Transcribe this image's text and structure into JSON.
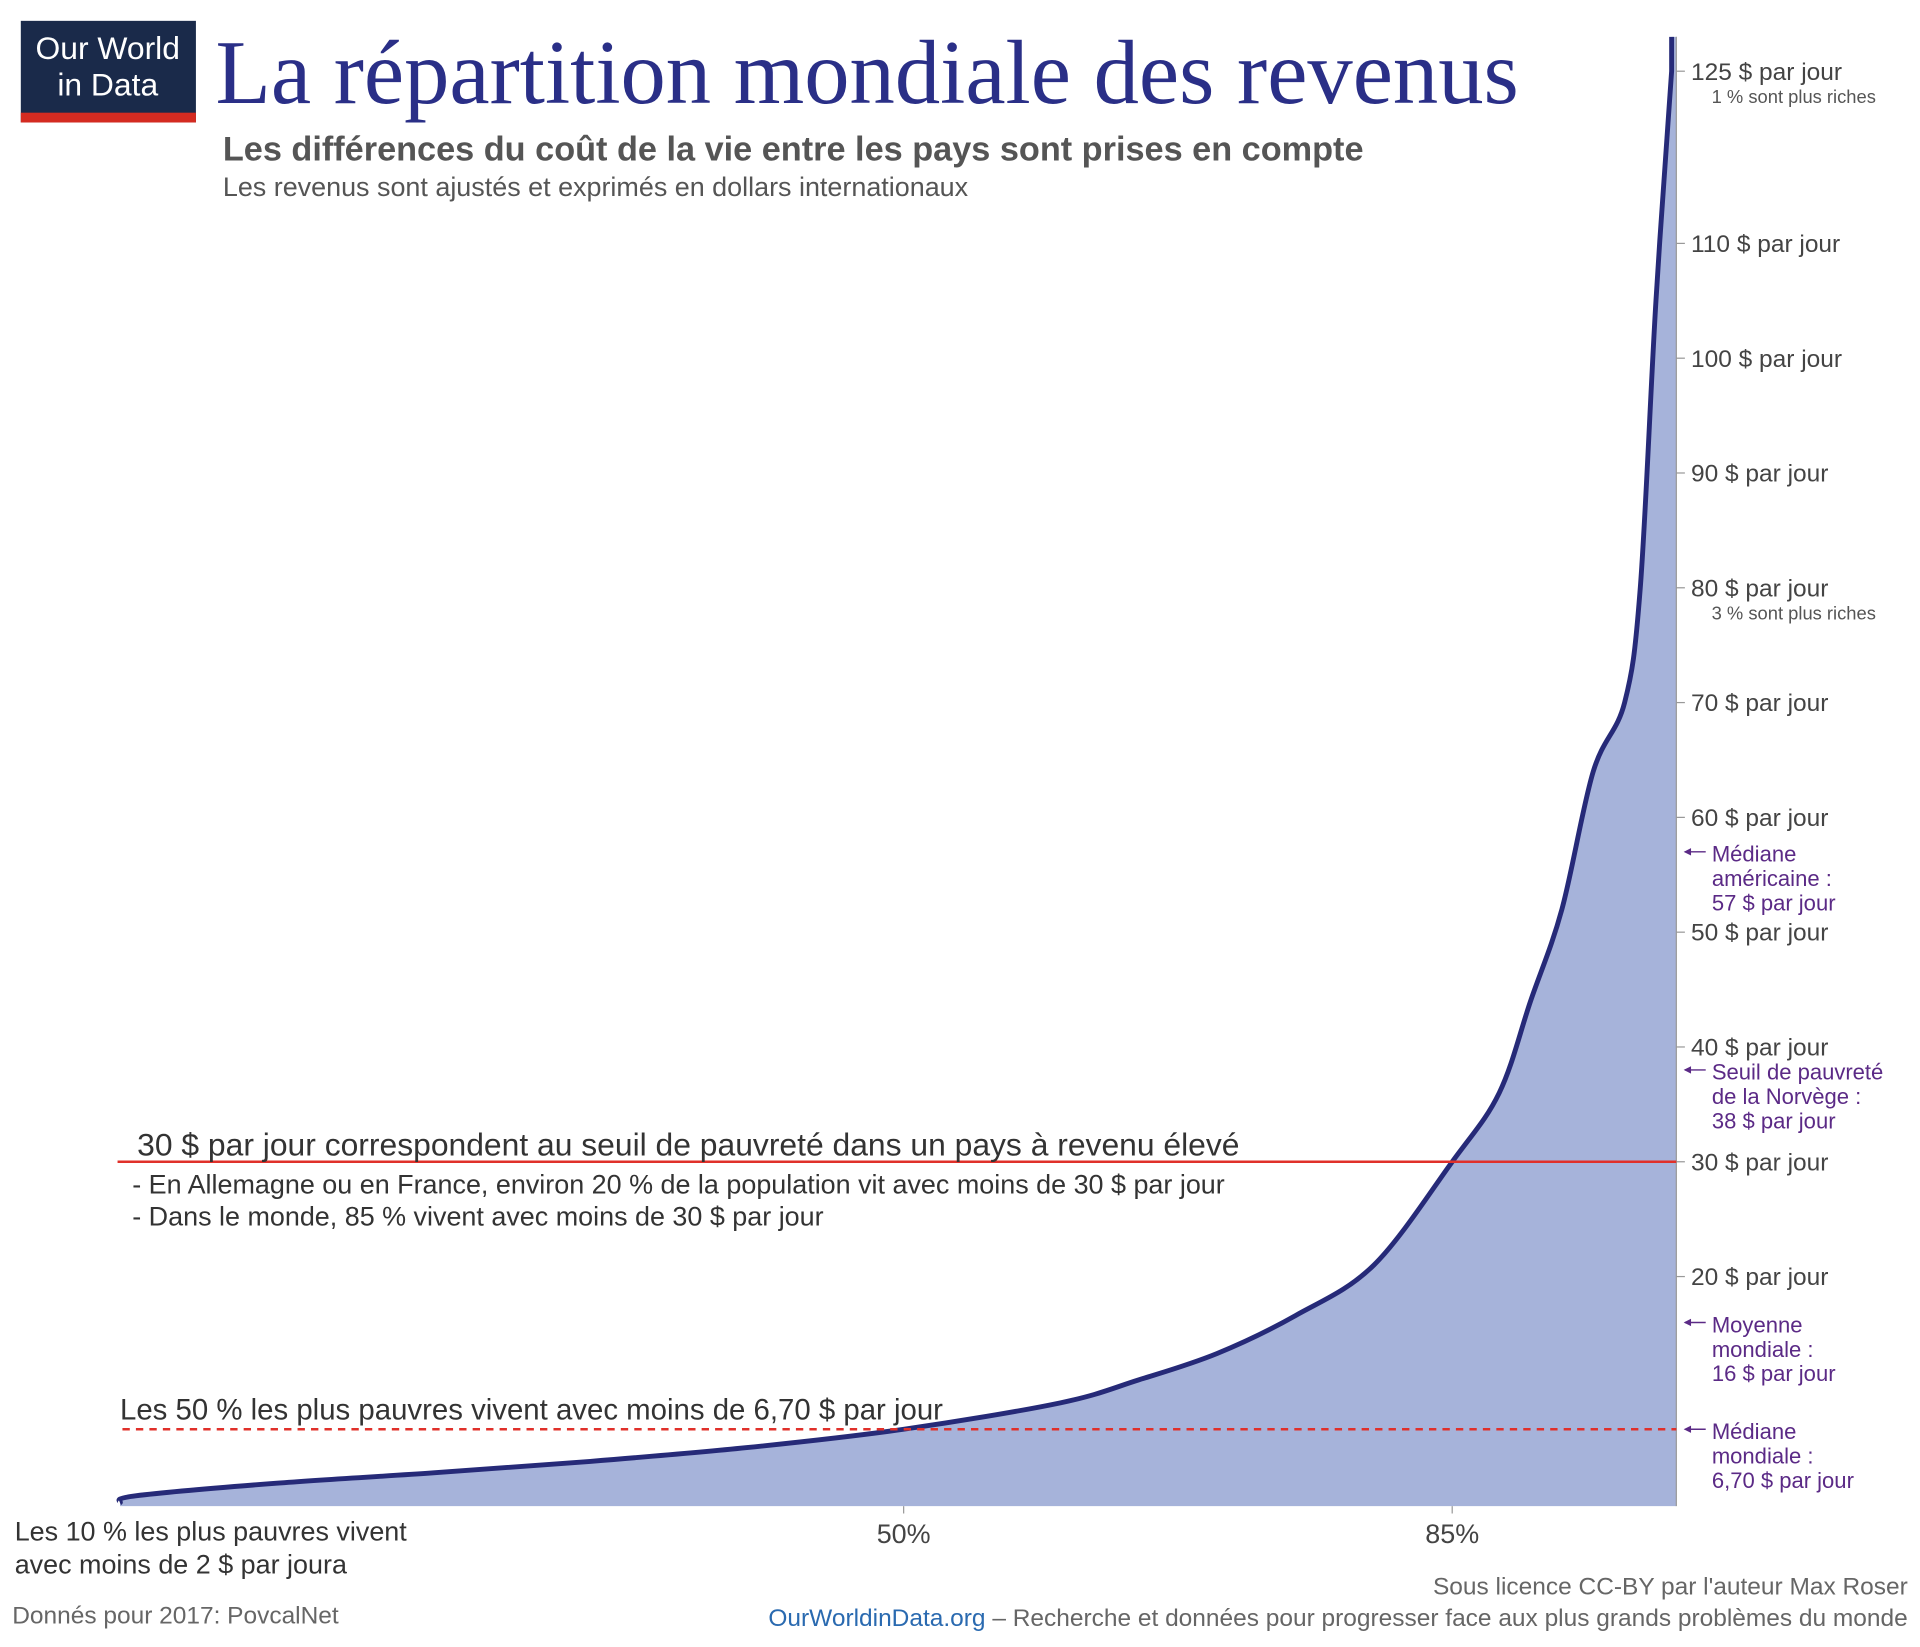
{
  "chart_data": {
    "type": "area",
    "logo": [
      "Our World",
      "in Data"
    ],
    "title": "La répartition mondiale des revenus",
    "subtitle": "Les différences du coût de la vie entre les pays sont prises en compte",
    "subtitle2": "Les revenus sont ajustés et exprimés en dollars internationaux",
    "x": [
      0,
      1,
      10,
      20,
      30,
      40,
      50,
      60,
      65,
      70,
      75,
      80,
      85,
      88,
      90,
      92,
      94,
      96,
      97,
      98,
      99
    ],
    "values": [
      0.3,
      0.9,
      2,
      2.9,
      3.9,
      5.1,
      6.7,
      9,
      11,
      13.3,
      16.6,
      21,
      30,
      36,
      44,
      52,
      64,
      70,
      80,
      105,
      125
    ],
    "color": "#a6b3da",
    "line_color": "#262a78",
    "xlim": [
      0,
      99.3
    ],
    "ylim": [
      0,
      128
    ],
    "xticks": [
      {
        "value": 50,
        "label": "50%"
      },
      {
        "value": 85,
        "label": "85%"
      }
    ],
    "yticks": [
      {
        "value": 20,
        "label": "20 $ par jour"
      },
      {
        "value": 30,
        "label": "30 $ par jour"
      },
      {
        "value": 40,
        "label": "40 $ par jour"
      },
      {
        "value": 50,
        "label": "50 $ par jour"
      },
      {
        "value": 60,
        "label": "60 $ par jour"
      },
      {
        "value": 70,
        "label": "70 $ par jour"
      },
      {
        "value": 80,
        "label": "80 $ par jour"
      },
      {
        "value": 90,
        "label": "90 $ par jour"
      },
      {
        "value": 100,
        "label": "100 $ par jour"
      },
      {
        "value": 110,
        "label": "110 $ par jour"
      },
      {
        "value": 125,
        "label": "125 $ par jour"
      }
    ],
    "tick_notes": [
      {
        "value": 125,
        "label": "1 % sont plus riches"
      },
      {
        "value": 80,
        "label": "3 % sont plus riches"
      }
    ],
    "markers": [
      {
        "value": 57,
        "lines": [
          "Médiane",
          "américaine :",
          "57 $ par jour"
        ]
      },
      {
        "value": 38,
        "lines": [
          "Seuil de pauvreté",
          "de la Norvège :",
          "38 $ par jour"
        ]
      },
      {
        "value": 16,
        "lines": [
          "Moyenne",
          "mondiale :",
          "16 $ par jour"
        ]
      },
      {
        "value": 6.7,
        "lines": [
          "Médiane",
          "mondiale :",
          "6,70 $ par jour"
        ]
      }
    ],
    "reference_lines": [
      {
        "value": 30,
        "dashed": false,
        "color": "#e0302a",
        "lines": [
          "30 $ par jour correspondent au seuil de pauvreté dans un pays à revenu élevé",
          "- En Allemagne ou en France, environ 20 % de la population vit avec moins de 30 $ par jour",
          "- Dans le monde, 85 % vivent avec moins de 30 $ par jour"
        ]
      },
      {
        "value": 6.7,
        "dashed": true,
        "color": "#e0302a",
        "lines": [
          "Les 50 % les plus pauvres vivent avec moins de 6,70 $ par jour"
        ]
      }
    ],
    "bottom_note": [
      "Les 10 % les plus pauvres vivent",
      "avec moins de 2 $ par joura"
    ],
    "source": "Donnés pour 2017: PovcalNet",
    "license": "Sous licence CC-BY par l'auteur Max Roser",
    "site": "OurWorldinData.org",
    "tagline": " – Recherche et données pour progresser face aux plus grands problèmes du monde"
  }
}
